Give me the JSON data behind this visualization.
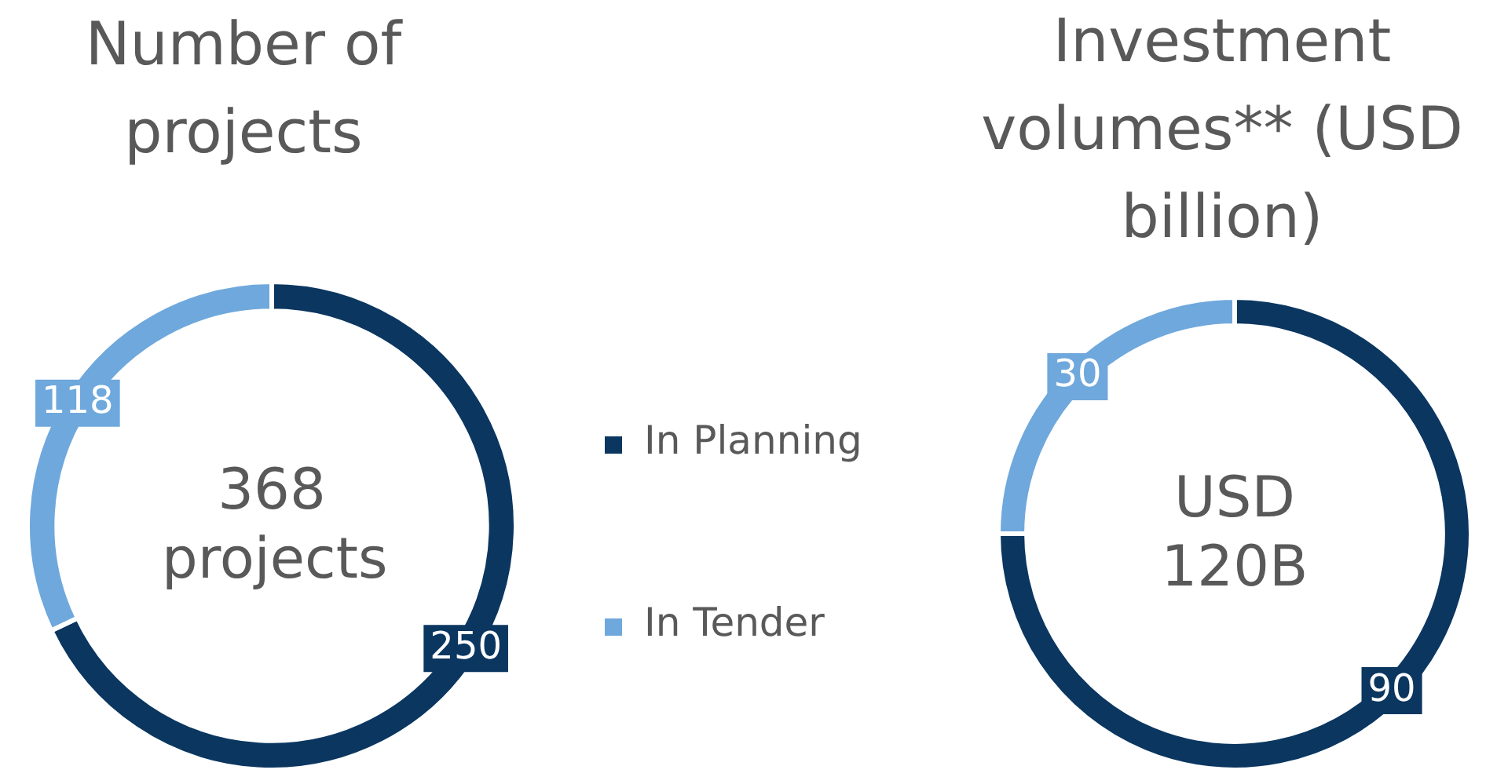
{
  "chart_data": [
    {
      "type": "donut",
      "title": "Number of projects",
      "categories": [
        "In Planning",
        "In Tender"
      ],
      "values": [
        250,
        118
      ],
      "colors": [
        "#0a3660",
        "#6fa8dc"
      ],
      "data_labels": true,
      "annotations": [
        "368 projects"
      ],
      "legend": "right"
    },
    {
      "type": "donut",
      "title": "Investment volumes** (USD billion)",
      "categories": [
        null,
        null
      ],
      "values": [
        90,
        30
      ],
      "colors": [
        "#0a3660",
        "#6fa8dc"
      ],
      "data_labels": true,
      "annotations": [
        "USD 120B"
      ]
    }
  ]
}
